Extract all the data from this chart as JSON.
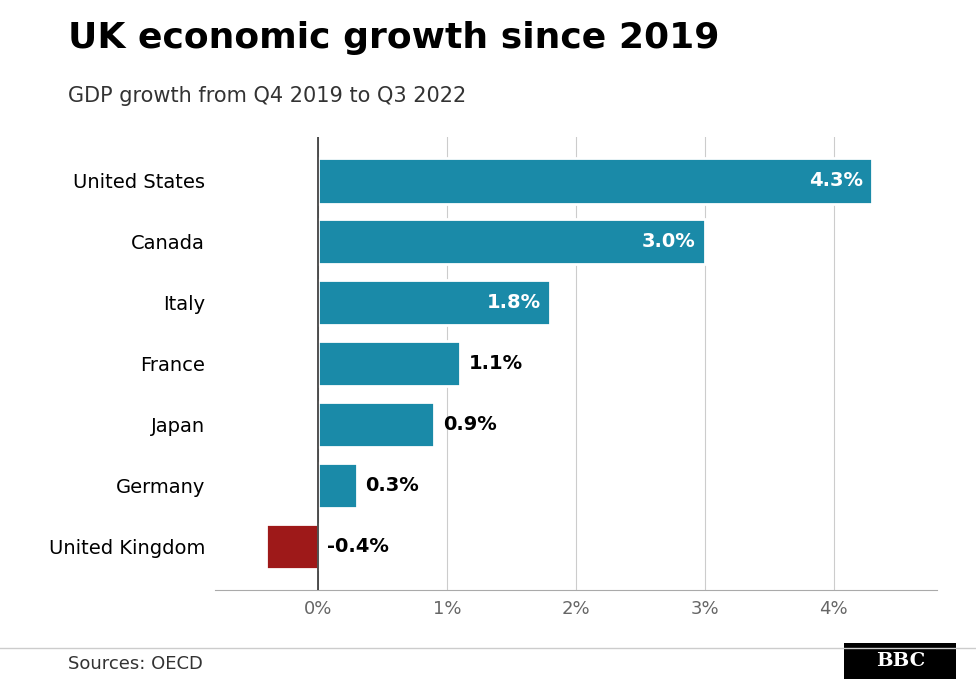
{
  "title": "UK economic growth since 2019",
  "subtitle": "GDP growth from Q4 2019 to Q3 2022",
  "categories": [
    "United States",
    "Canada",
    "Italy",
    "France",
    "Japan",
    "Germany",
    "United Kingdom"
  ],
  "values": [
    4.3,
    3.0,
    1.8,
    1.1,
    0.9,
    0.3,
    -0.4
  ],
  "labels": [
    "4.3%",
    "3.0%",
    "1.8%",
    "1.1%",
    "0.9%",
    "0.3%",
    "-0.4%"
  ],
  "bar_colors": [
    "#1a8aa8",
    "#1a8aa8",
    "#1a8aa8",
    "#1a8aa8",
    "#1a8aa8",
    "#1a8aa8",
    "#9e1919"
  ],
  "xlim": [
    -0.8,
    4.8
  ],
  "xticks": [
    0,
    1,
    2,
    3,
    4
  ],
  "xticklabels": [
    "0%",
    "1%",
    "2%",
    "3%",
    "4%"
  ],
  "background_color": "#ffffff",
  "source_text": "Sources: OECD",
  "title_fontsize": 26,
  "subtitle_fontsize": 15,
  "source_fontsize": 13,
  "tick_fontsize": 13,
  "ylabel_fontsize": 14,
  "bar_label_fontsize": 14
}
